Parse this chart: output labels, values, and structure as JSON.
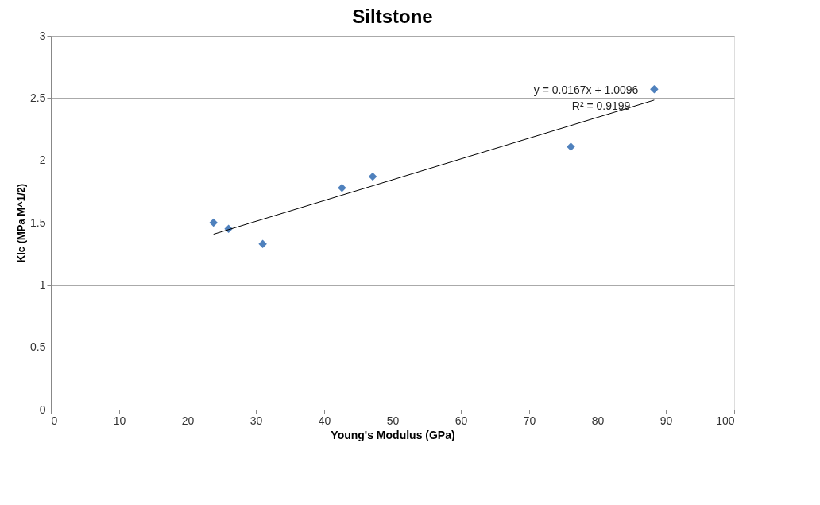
{
  "chart_data": {
    "type": "scatter",
    "title": "Siltstone",
    "xlabel": "Young's Modulus (GPa)",
    "ylabel": "KIc (MPa M^1/2)",
    "series": [
      {
        "color": "#4f81bd",
        "marker": "diamond",
        "x": [
          23.8,
          26.0,
          31.0,
          42.6,
          47.1,
          76.1,
          88.3
        ],
        "values": [
          1.5,
          1.45,
          1.33,
          1.78,
          1.87,
          2.11,
          2.57
        ]
      },
      {
        "type": "line",
        "color": "#000000",
        "marker": "none",
        "x": [
          23.8,
          88.3
        ],
        "values": [
          1.407,
          2.484
        ]
      }
    ],
    "annotations": [
      "y = 0.0167x + 1.0096",
      "R² = 0.9199"
    ],
    "xlim": [
      0,
      100
    ],
    "xticks": [
      0,
      10,
      20,
      30,
      40,
      50,
      60,
      70,
      80,
      90,
      100
    ],
    "ylim": [
      0,
      3
    ],
    "yticks": [
      0,
      0.5,
      1,
      1.5,
      2,
      2.5,
      3
    ],
    "grid": "y"
  }
}
